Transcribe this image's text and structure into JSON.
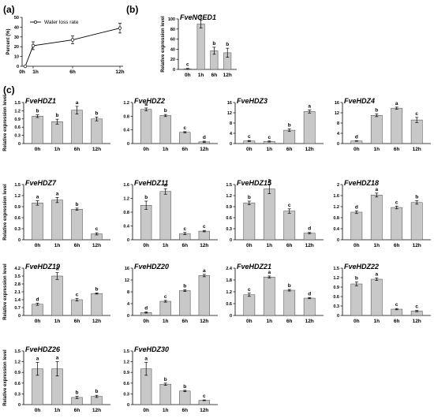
{
  "panel_labels": [
    "(a)",
    "(b)",
    "(c)"
  ],
  "chart_data": [
    {
      "id": "a",
      "type": "line",
      "x": [
        "0h",
        "1h",
        "6h",
        "12h"
      ],
      "x_numeric": [
        0,
        1,
        6,
        12
      ],
      "x_tick_labels": [
        "0h",
        "1h",
        "6h",
        "12h"
      ],
      "series": [
        {
          "name": "Water loss rate",
          "values": [
            0,
            21,
            27,
            39
          ],
          "errors": [
            0,
            4,
            4,
            5
          ]
        }
      ],
      "ylabel": "Percent (%)",
      "ylim": [
        0,
        50
      ],
      "yticks": [
        0,
        10,
        20,
        30,
        40,
        50
      ],
      "legend": "top-left"
    },
    {
      "id": "b",
      "type": "bar",
      "gene": "FveNCED1",
      "categories": [
        "0h",
        "1h",
        "6h",
        "12h"
      ],
      "values": [
        1,
        90,
        37,
        33
      ],
      "errors": [
        1,
        8,
        7,
        9
      ],
      "letters": [
        "c",
        "a",
        "b",
        "b"
      ],
      "ylabel": "Relative expression level",
      "ylim": [
        0,
        100
      ],
      "yticks": [
        0,
        20,
        40,
        60,
        80,
        100
      ]
    },
    {
      "id": "HDZ1",
      "type": "bar",
      "gene": "FveHDZ1",
      "categories": [
        "0h",
        "1h",
        "6h",
        "12h"
      ],
      "values": [
        1.0,
        0.8,
        1.22,
        0.9
      ],
      "errors": [
        0.05,
        0.09,
        0.14,
        0.07
      ],
      "letters": [
        "b",
        "b",
        "a",
        "b"
      ],
      "ylim": [
        0,
        1.5
      ],
      "yticks": [
        0,
        0.3,
        0.6,
        0.9,
        1.2,
        1.5
      ],
      "ylabel": "Relative expression level"
    },
    {
      "id": "HDZ2",
      "type": "bar",
      "gene": "FveHDZ2",
      "categories": [
        "0h",
        "1h",
        "6h",
        "12h"
      ],
      "values": [
        1.0,
        0.82,
        0.33,
        0.05
      ],
      "errors": [
        0.04,
        0.03,
        0.02,
        0.02
      ],
      "letters": [
        "a",
        "b",
        "c",
        "d"
      ],
      "ylim": [
        0,
        1.2
      ],
      "yticks": [
        0,
        0.4,
        0.8,
        1.2
      ],
      "ylabel": ""
    },
    {
      "id": "HDZ3",
      "type": "bar",
      "gene": "FveHDZ3",
      "categories": [
        "0h",
        "1h",
        "6h",
        "12h"
      ],
      "values": [
        1,
        0.8,
        5.2,
        12.5
      ],
      "errors": [
        0.2,
        0.2,
        0.5,
        0.6
      ],
      "letters": [
        "c",
        "c",
        "b",
        "a"
      ],
      "ylim": [
        0,
        16
      ],
      "yticks": [
        0,
        4,
        8,
        12,
        16
      ],
      "ylabel": ""
    },
    {
      "id": "HDZ4",
      "type": "bar",
      "gene": "FveHDZ4",
      "categories": [
        "0h",
        "1h",
        "6h",
        "12h"
      ],
      "values": [
        1,
        11,
        13.8,
        9.2
      ],
      "errors": [
        0.1,
        0.5,
        0.4,
        1.0
      ],
      "letters": [
        "d",
        "b",
        "a",
        "c"
      ],
      "ylim": [
        0,
        16
      ],
      "yticks": [
        0,
        4,
        8,
        12,
        16
      ],
      "ylabel": ""
    },
    {
      "id": "HDZ7",
      "type": "bar",
      "gene": "FveHDZ7",
      "categories": [
        "0h",
        "1h",
        "6h",
        "12h"
      ],
      "values": [
        1.0,
        1.08,
        0.83,
        0.16
      ],
      "errors": [
        0.06,
        0.07,
        0.03,
        0.03
      ],
      "letters": [
        "a",
        "a",
        "b",
        "c"
      ],
      "ylim": [
        0,
        1.5
      ],
      "yticks": [
        0,
        0.3,
        0.6,
        0.9,
        1.2,
        1.5
      ],
      "ylabel": "Relative expression level"
    },
    {
      "id": "HDZ11",
      "type": "bar",
      "gene": "FveHDZ11",
      "categories": [
        "0h",
        "1h",
        "6h",
        "12h"
      ],
      "values": [
        1.0,
        1.4,
        0.18,
        0.25
      ],
      "errors": [
        0.12,
        0.08,
        0.03,
        0.02
      ],
      "letters": [
        "b",
        "a",
        "c",
        "c"
      ],
      "ylim": [
        0,
        1.6
      ],
      "yticks": [
        0,
        0.4,
        0.8,
        1.2,
        1.6
      ],
      "ylabel": ""
    },
    {
      "id": "HDZ15",
      "type": "bar",
      "gene": "FveHDZ15",
      "categories": [
        "0h",
        "1h",
        "6h",
        "12h"
      ],
      "values": [
        1.0,
        1.38,
        0.78,
        0.18
      ],
      "errors": [
        0.05,
        0.13,
        0.06,
        0.02
      ],
      "letters": [
        "b",
        "a",
        "c",
        "d"
      ],
      "ylim": [
        0,
        1.5
      ],
      "yticks": [
        0,
        0.3,
        0.6,
        0.9,
        1.2,
        1.5
      ],
      "ylabel": ""
    },
    {
      "id": "HDZ18",
      "type": "bar",
      "gene": "FveHDZ18",
      "categories": [
        "0h",
        "1h",
        "6h",
        "12h"
      ],
      "values": [
        1.0,
        1.62,
        1.17,
        1.35
      ],
      "errors": [
        0.05,
        0.07,
        0.05,
        0.06
      ],
      "letters": [
        "d",
        "a",
        "c",
        "b"
      ],
      "ylim": [
        0,
        2.0
      ],
      "yticks": [
        0,
        0.4,
        0.8,
        1.2,
        1.6,
        2.0
      ],
      "ylabel": ""
    },
    {
      "id": "HDZ19",
      "type": "bar",
      "gene": "FveHDZ19",
      "categories": [
        "0h",
        "1h",
        "6h",
        "12h"
      ],
      "values": [
        1.0,
        3.5,
        1.4,
        1.95
      ],
      "errors": [
        0.1,
        0.3,
        0.12,
        0.05
      ],
      "letters": [
        "d",
        "a",
        "c",
        "b"
      ],
      "ylim": [
        0,
        4.2
      ],
      "yticks": [
        0,
        0.7,
        1.4,
        2.1,
        2.8,
        3.5,
        4.2
      ],
      "ylabel": "Relative expression level"
    },
    {
      "id": "HDZ20",
      "type": "bar",
      "gene": "FveHDZ20",
      "categories": [
        "0h",
        "1h",
        "6h",
        "12h"
      ],
      "values": [
        1,
        4.8,
        8.4,
        13.5
      ],
      "errors": [
        0.2,
        0.3,
        0.3,
        0.4
      ],
      "letters": [
        "d",
        "c",
        "b",
        "a"
      ],
      "ylim": [
        0,
        16
      ],
      "yticks": [
        0,
        4,
        8,
        12,
        16
      ],
      "ylabel": ""
    },
    {
      "id": "HDZ21",
      "type": "bar",
      "gene": "FveHDZ21",
      "categories": [
        "0h",
        "1h",
        "6h",
        "12h"
      ],
      "values": [
        1.05,
        1.95,
        1.28,
        0.88
      ],
      "errors": [
        0.08,
        0.05,
        0.04,
        0.03
      ],
      "letters": [
        "c",
        "a",
        "b",
        "d"
      ],
      "ylim": [
        0,
        2.4
      ],
      "yticks": [
        0,
        0.6,
        1.2,
        1.8,
        2.4
      ],
      "ylabel": ""
    },
    {
      "id": "HDZ22",
      "type": "bar",
      "gene": "FveHDZ22",
      "categories": [
        "0h",
        "1h",
        "6h",
        "12h"
      ],
      "values": [
        1.0,
        1.15,
        0.2,
        0.14
      ],
      "errors": [
        0.06,
        0.04,
        0.02,
        0.02
      ],
      "letters": [
        "b",
        "a",
        "c",
        "c"
      ],
      "ylim": [
        0,
        1.5
      ],
      "yticks": [
        0,
        0.3,
        0.6,
        0.9,
        1.2,
        1.5
      ],
      "ylabel": ""
    },
    {
      "id": "HDZ26",
      "type": "bar",
      "gene": "FveHDZ26",
      "categories": [
        "0h",
        "1h",
        "6h",
        "12h"
      ],
      "values": [
        1.0,
        1.0,
        0.2,
        0.23
      ],
      "errors": [
        0.18,
        0.2,
        0.03,
        0.03
      ],
      "letters": [
        "a",
        "a",
        "b",
        "b"
      ],
      "ylim": [
        0,
        1.5
      ],
      "yticks": [
        0,
        0.3,
        0.6,
        0.9,
        1.2,
        1.5
      ],
      "ylabel": "Relative expression level"
    },
    {
      "id": "HDZ30",
      "type": "bar",
      "gene": "FveHDZ30",
      "categories": [
        "0h",
        "1h",
        "6h",
        "12h"
      ],
      "values": [
        1.0,
        0.57,
        0.38,
        0.12
      ],
      "errors": [
        0.18,
        0.03,
        0.02,
        0.01
      ],
      "letters": [
        "a",
        "b",
        "b",
        "c"
      ],
      "ylim": [
        0,
        1.5
      ],
      "yticks": [
        0,
        0.3,
        0.6,
        0.9,
        1.2,
        1.5
      ],
      "ylabel": ""
    }
  ]
}
